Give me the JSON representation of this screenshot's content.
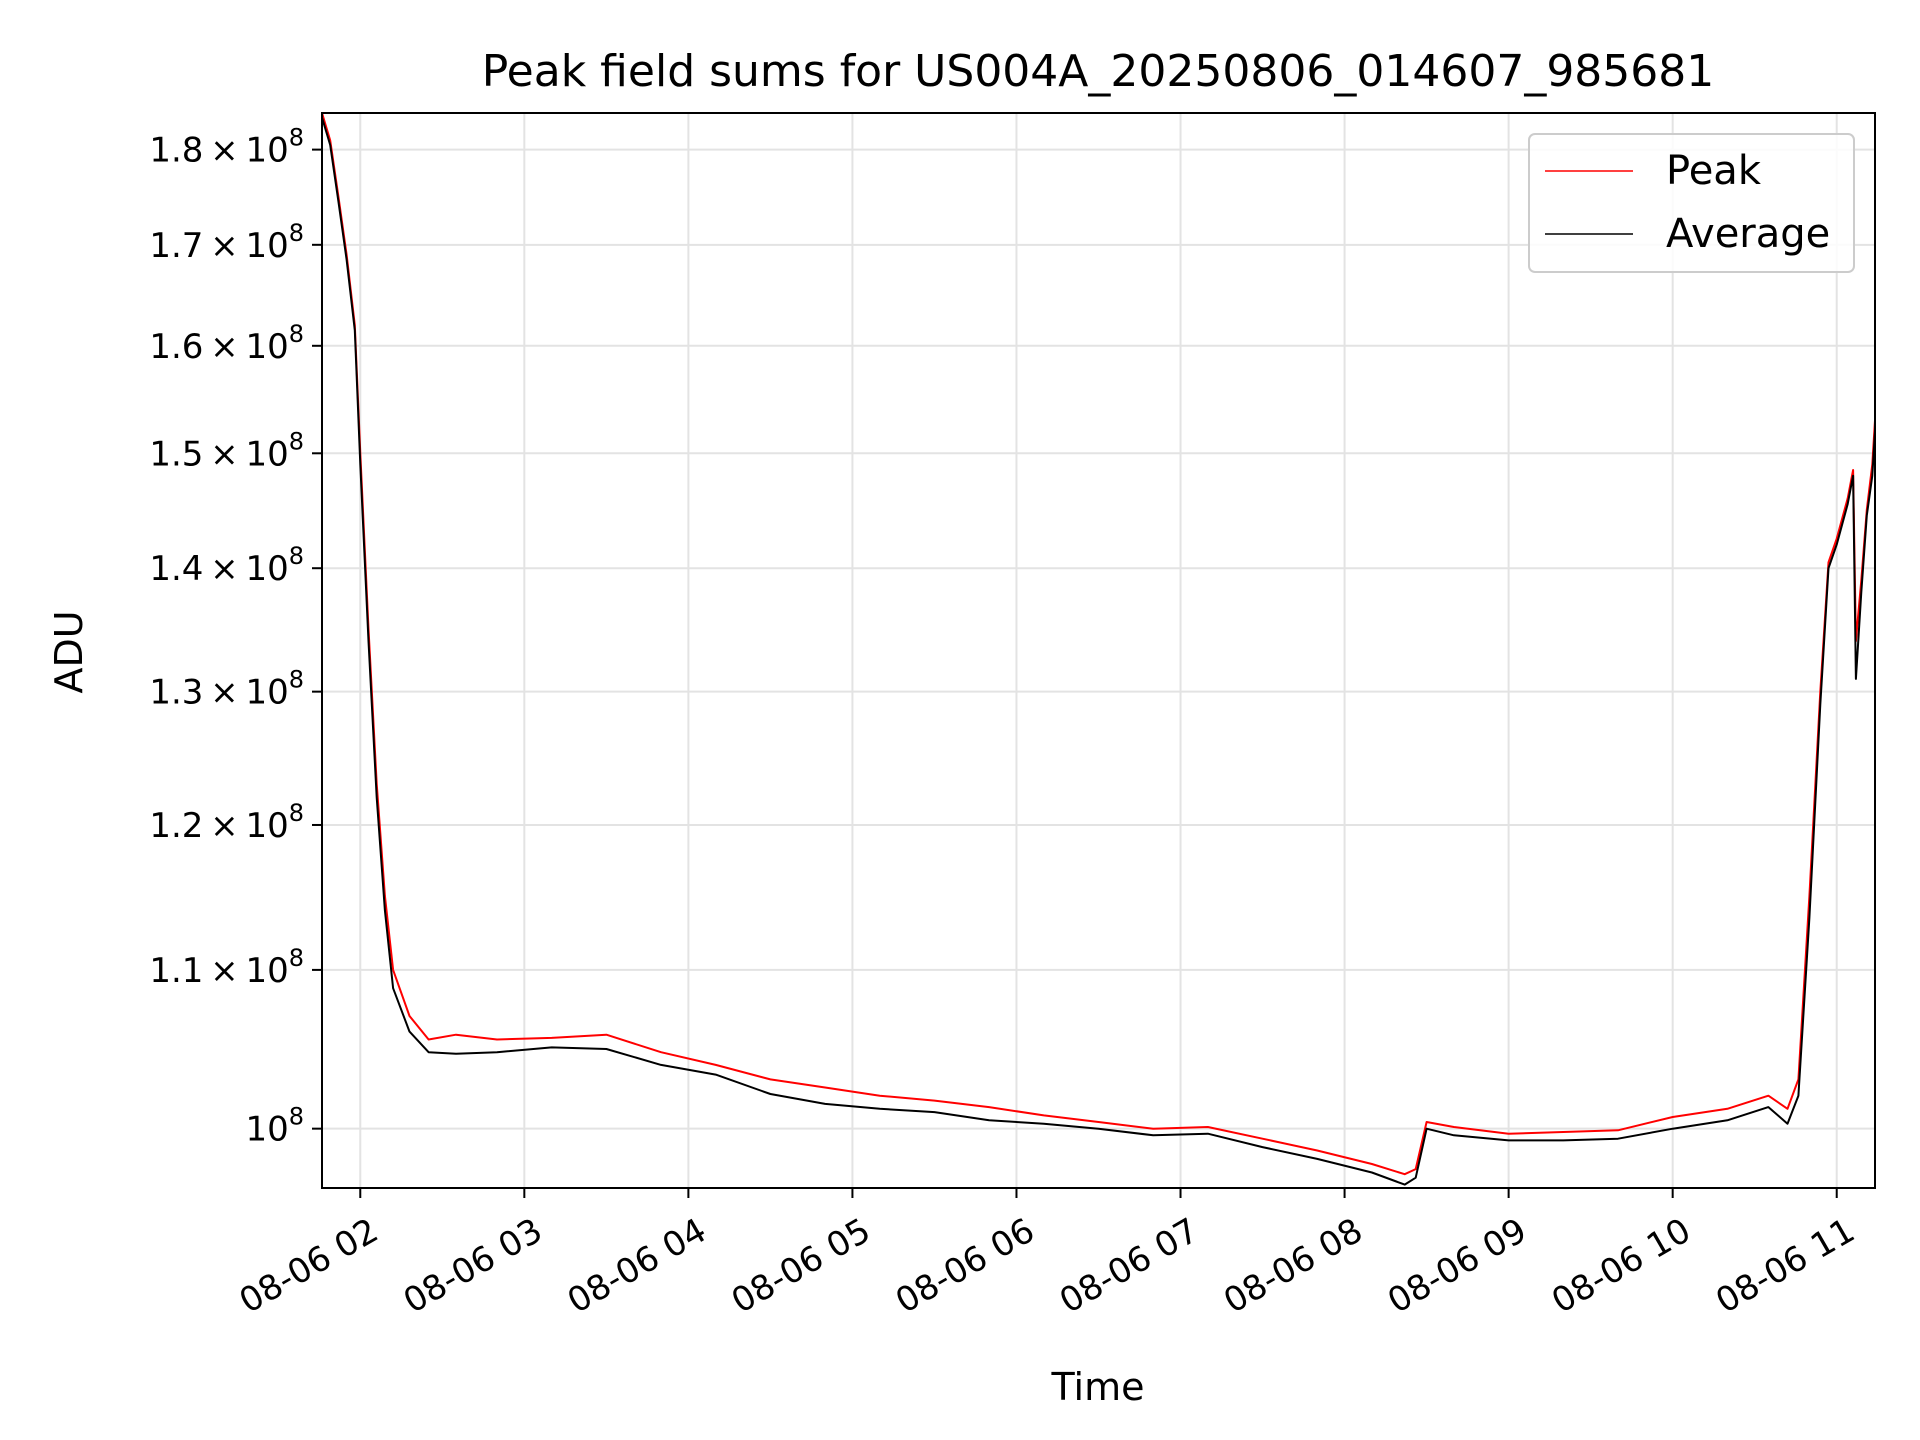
{
  "chart_data": {
    "type": "line",
    "title": "Peak field sums for US004A_20250806_014607_985681",
    "xlabel": "Time",
    "ylabel": "ADU",
    "yscale": "log",
    "grid": true,
    "legend_position": "top-right",
    "xlim": [
      "2025-08-06 01:46",
      "2025-08-06 11:14"
    ],
    "ylim": [
      96500000,
      184000000
    ],
    "x_ticks": [
      {
        "time": "2025-08-06 02:00",
        "label": "08-06 02"
      },
      {
        "time": "2025-08-06 03:00",
        "label": "08-06 03"
      },
      {
        "time": "2025-08-06 04:00",
        "label": "08-06 04"
      },
      {
        "time": "2025-08-06 05:00",
        "label": "08-06 05"
      },
      {
        "time": "2025-08-06 06:00",
        "label": "08-06 06"
      },
      {
        "time": "2025-08-06 07:00",
        "label": "08-06 07"
      },
      {
        "time": "2025-08-06 08:00",
        "label": "08-06 08"
      },
      {
        "time": "2025-08-06 09:00",
        "label": "08-06 09"
      },
      {
        "time": "2025-08-06 10:00",
        "label": "08-06 10"
      },
      {
        "time": "2025-08-06 11:00",
        "label": "08-06 11"
      }
    ],
    "y_ticks": [
      {
        "value": 100000000,
        "mantissa": "",
        "exp": "8"
      },
      {
        "value": 110000000,
        "mantissa": "1.1",
        "exp": "8"
      },
      {
        "value": 120000000,
        "mantissa": "1.2",
        "exp": "8"
      },
      {
        "value": 130000000,
        "mantissa": "1.3",
        "exp": "8"
      },
      {
        "value": 140000000,
        "mantissa": "1.4",
        "exp": "8"
      },
      {
        "value": 150000000,
        "mantissa": "1.5",
        "exp": "8"
      },
      {
        "value": 160000000,
        "mantissa": "1.6",
        "exp": "8"
      },
      {
        "value": 170000000,
        "mantissa": "1.7",
        "exp": "8"
      },
      {
        "value": 180000000,
        "mantissa": "1.8",
        "exp": "8"
      }
    ],
    "times_sign": "×",
    "tick_base": "10",
    "series": [
      {
        "name": "Peak",
        "color": "#ff0000",
        "points": [
          [
            "2025-08-06 01:46",
            184000000
          ],
          [
            "2025-08-06 01:49",
            181000000
          ],
          [
            "2025-08-06 01:52",
            175000000
          ],
          [
            "2025-08-06 01:55",
            169000000
          ],
          [
            "2025-08-06 01:58",
            162000000
          ],
          [
            "2025-08-06 02:00",
            150000000
          ],
          [
            "2025-08-06 02:03",
            135000000
          ],
          [
            "2025-08-06 02:06",
            123000000
          ],
          [
            "2025-08-06 02:09",
            115000000
          ],
          [
            "2025-08-06 02:12",
            110000000
          ],
          [
            "2025-08-06 02:18",
            107000000
          ],
          [
            "2025-08-06 02:25",
            105500000
          ],
          [
            "2025-08-06 02:35",
            105800000
          ],
          [
            "2025-08-06 02:50",
            105500000
          ],
          [
            "2025-08-06 03:10",
            105600000
          ],
          [
            "2025-08-06 03:30",
            105800000
          ],
          [
            "2025-08-06 03:50",
            104700000
          ],
          [
            "2025-08-06 04:10",
            103900000
          ],
          [
            "2025-08-06 04:30",
            103000000
          ],
          [
            "2025-08-06 04:50",
            102500000
          ],
          [
            "2025-08-06 05:10",
            102000000
          ],
          [
            "2025-08-06 05:30",
            101700000
          ],
          [
            "2025-08-06 05:50",
            101300000
          ],
          [
            "2025-08-06 06:10",
            100800000
          ],
          [
            "2025-08-06 06:30",
            100400000
          ],
          [
            "2025-08-06 06:50",
            100000000
          ],
          [
            "2025-08-06 07:10",
            100100000
          ],
          [
            "2025-08-06 07:30",
            99400000
          ],
          [
            "2025-08-06 07:50",
            98700000
          ],
          [
            "2025-08-06 08:10",
            97900000
          ],
          [
            "2025-08-06 08:22",
            97300000
          ],
          [
            "2025-08-06 08:26",
            97600000
          ],
          [
            "2025-08-06 08:30",
            100400000
          ],
          [
            "2025-08-06 08:40",
            100100000
          ],
          [
            "2025-08-06 09:00",
            99700000
          ],
          [
            "2025-08-06 09:20",
            99800000
          ],
          [
            "2025-08-06 09:40",
            99900000
          ],
          [
            "2025-08-06 10:00",
            100700000
          ],
          [
            "2025-08-06 10:20",
            101200000
          ],
          [
            "2025-08-06 10:35",
            102000000
          ],
          [
            "2025-08-06 10:42",
            101200000
          ],
          [
            "2025-08-06 10:46",
            103000000
          ],
          [
            "2025-08-06 10:50",
            115000000
          ],
          [
            "2025-08-06 10:54",
            130000000
          ],
          [
            "2025-08-06 10:57",
            140500000
          ],
          [
            "2025-08-06 11:00",
            142500000
          ],
          [
            "2025-08-06 11:04",
            146000000
          ],
          [
            "2025-08-06 11:06",
            148500000
          ],
          [
            "2025-08-06 11:07",
            134000000
          ],
          [
            "2025-08-06 11:09",
            139000000
          ],
          [
            "2025-08-06 11:11",
            145000000
          ],
          [
            "2025-08-06 11:13",
            149000000
          ],
          [
            "2025-08-06 11:14",
            153000000
          ]
        ]
      },
      {
        "name": "Average",
        "color": "#000000",
        "points": [
          [
            "2025-08-06 01:46",
            183500000
          ],
          [
            "2025-08-06 01:49",
            180500000
          ],
          [
            "2025-08-06 01:52",
            174500000
          ],
          [
            "2025-08-06 01:55",
            168500000
          ],
          [
            "2025-08-06 01:58",
            161500000
          ],
          [
            "2025-08-06 02:00",
            149000000
          ],
          [
            "2025-08-06 02:03",
            134000000
          ],
          [
            "2025-08-06 02:06",
            122000000
          ],
          [
            "2025-08-06 02:09",
            114000000
          ],
          [
            "2025-08-06 02:12",
            108800000
          ],
          [
            "2025-08-06 02:18",
            106000000
          ],
          [
            "2025-08-06 02:25",
            104700000
          ],
          [
            "2025-08-06 02:35",
            104600000
          ],
          [
            "2025-08-06 02:50",
            104700000
          ],
          [
            "2025-08-06 03:10",
            105000000
          ],
          [
            "2025-08-06 03:30",
            104900000
          ],
          [
            "2025-08-06 03:50",
            103900000
          ],
          [
            "2025-08-06 04:10",
            103300000
          ],
          [
            "2025-08-06 04:30",
            102100000
          ],
          [
            "2025-08-06 04:50",
            101500000
          ],
          [
            "2025-08-06 05:10",
            101200000
          ],
          [
            "2025-08-06 05:30",
            101000000
          ],
          [
            "2025-08-06 05:50",
            100500000
          ],
          [
            "2025-08-06 06:10",
            100300000
          ],
          [
            "2025-08-06 06:30",
            100000000
          ],
          [
            "2025-08-06 06:50",
            99600000
          ],
          [
            "2025-08-06 07:10",
            99700000
          ],
          [
            "2025-08-06 07:30",
            98900000
          ],
          [
            "2025-08-06 07:50",
            98200000
          ],
          [
            "2025-08-06 08:10",
            97400000
          ],
          [
            "2025-08-06 08:22",
            96700000
          ],
          [
            "2025-08-06 08:26",
            97100000
          ],
          [
            "2025-08-06 08:30",
            100000000
          ],
          [
            "2025-08-06 08:40",
            99600000
          ],
          [
            "2025-08-06 09:00",
            99300000
          ],
          [
            "2025-08-06 09:20",
            99300000
          ],
          [
            "2025-08-06 09:40",
            99400000
          ],
          [
            "2025-08-06 10:00",
            100000000
          ],
          [
            "2025-08-06 10:20",
            100500000
          ],
          [
            "2025-08-06 10:35",
            101300000
          ],
          [
            "2025-08-06 10:42",
            100300000
          ],
          [
            "2025-08-06 10:46",
            102000000
          ],
          [
            "2025-08-06 10:50",
            113500000
          ],
          [
            "2025-08-06 10:54",
            129000000
          ],
          [
            "2025-08-06 10:57",
            140000000
          ],
          [
            "2025-08-06 11:00",
            142000000
          ],
          [
            "2025-08-06 11:04",
            145500000
          ],
          [
            "2025-08-06 11:06",
            148000000
          ],
          [
            "2025-08-06 11:07",
            131000000
          ],
          [
            "2025-08-06 11:09",
            138000000
          ],
          [
            "2025-08-06 11:11",
            144500000
          ],
          [
            "2025-08-06 11:13",
            148000000
          ],
          [
            "2025-08-06 11:14",
            152000000
          ]
        ]
      }
    ]
  }
}
